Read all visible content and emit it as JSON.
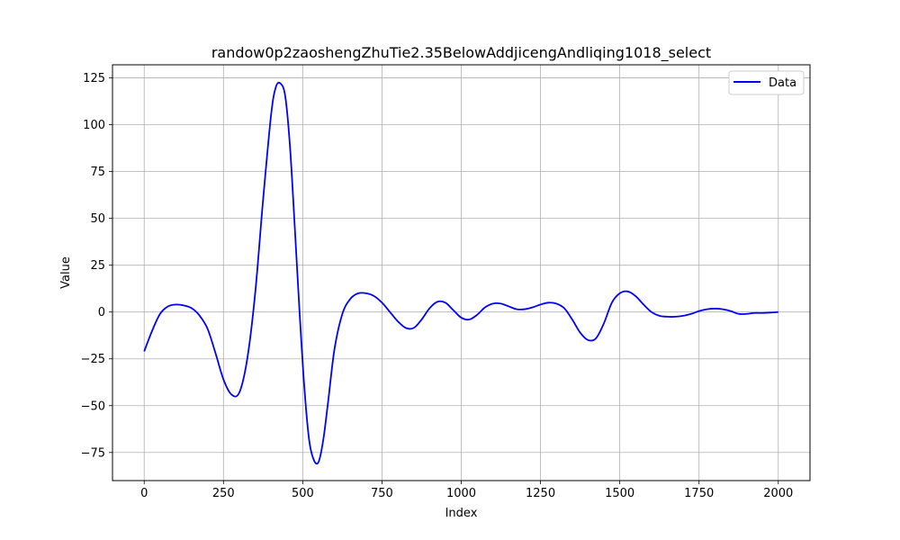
{
  "chart_data": {
    "type": "line",
    "title": "randow0p2zaoshengZhuTie2.35BelowAddjicengAndliqing1018_select",
    "xlabel": "Index",
    "ylabel": "Value",
    "xlim": [
      -100,
      2100
    ],
    "ylim": [
      -90,
      132
    ],
    "xticks": [
      0,
      250,
      500,
      750,
      1000,
      1250,
      1500,
      1750,
      2000
    ],
    "yticks": [
      -75,
      -50,
      -25,
      0,
      25,
      50,
      75,
      100,
      125
    ],
    "grid": true,
    "legend_position": "top-right",
    "series": [
      {
        "name": "Data",
        "color": "#0000ff",
        "x": [
          0,
          25,
          50,
          75,
          100,
          125,
          150,
          175,
          200,
          225,
          250,
          275,
          300,
          325,
          350,
          375,
          400,
          415,
          430,
          445,
          460,
          475,
          490,
          505,
          520,
          535,
          550,
          565,
          580,
          600,
          625,
          650,
          675,
          700,
          725,
          750,
          775,
          800,
          825,
          850,
          875,
          900,
          925,
          950,
          975,
          1000,
          1025,
          1050,
          1075,
          1100,
          1125,
          1150,
          1175,
          1200,
          1225,
          1250,
          1275,
          1300,
          1325,
          1350,
          1375,
          1400,
          1425,
          1450,
          1475,
          1500,
          1525,
          1550,
          1575,
          1600,
          1625,
          1650,
          1675,
          1700,
          1725,
          1750,
          1775,
          1800,
          1825,
          1850,
          1875,
          1900,
          1925,
          1950,
          1975,
          2000
        ],
        "values": [
          -21,
          -10,
          -1,
          3,
          4,
          3.5,
          2,
          -2,
          -9,
          -22,
          -36,
          -44,
          -43,
          -25,
          10,
          60,
          105,
          120,
          122,
          115,
          88,
          45,
          0,
          -40,
          -68,
          -79,
          -80,
          -68,
          -48,
          -20,
          -1,
          7,
          10,
          10,
          8.5,
          5,
          0,
          -5,
          -8.5,
          -8.5,
          -4,
          2,
          5.5,
          5,
          1,
          -3,
          -4,
          -1.5,
          2.5,
          4.5,
          4.5,
          3,
          1.5,
          1.5,
          2.5,
          4,
          5,
          4.5,
          2,
          -4,
          -11,
          -15,
          -14,
          -6,
          5,
          10,
          11,
          8.5,
          4,
          0,
          -2,
          -2.5,
          -2.5,
          -2,
          -1,
          0.5,
          1.5,
          1.8,
          1.5,
          0.5,
          -1,
          -1,
          -0.5,
          -0.5,
          -0.3,
          0
        ]
      }
    ]
  }
}
